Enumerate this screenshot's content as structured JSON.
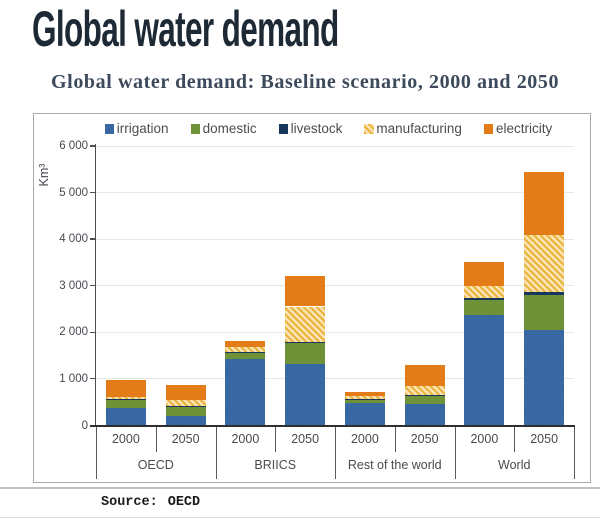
{
  "page": {
    "title": "Global water demand",
    "source_label": "Source:",
    "source_value": "OECD"
  },
  "chart_data": {
    "type": "bar",
    "stacked": true,
    "title": "Global water demand: Baseline scenario, 2000 and 2050",
    "ylabel": "Km³",
    "ylim": [
      0,
      6000
    ],
    "ytick_step": 1000,
    "ytick_labels": [
      "0",
      "1 000",
      "2 000",
      "3 000",
      "4 000",
      "5 000",
      "6 000"
    ],
    "grid": true,
    "legend_position": "top",
    "groups": [
      "OECD",
      "BRIICS",
      "Rest of the world",
      "World"
    ],
    "categories": [
      "2000",
      "2050",
      "2000",
      "2050",
      "2000",
      "2050",
      "2000",
      "2050"
    ],
    "series": [
      {
        "name": "irrigation",
        "color": "#3a6ba7",
        "pattern_color": "#33619c",
        "pattern": "hatch-thin",
        "values": [
          370,
          210,
          1425,
          1310,
          490,
          460,
          2370,
          2040
        ]
      },
      {
        "name": "domestic",
        "color": "#6f9138",
        "pattern_color": "#6f9138",
        "pattern": "solid",
        "values": [
          180,
          195,
          140,
          475,
          60,
          175,
          335,
          770
        ]
      },
      {
        "name": "livestock",
        "color": "#17365d",
        "pattern_color": "#17365d",
        "pattern": "solid",
        "values": [
          10,
          10,
          10,
          15,
          10,
          25,
          35,
          65
        ]
      },
      {
        "name": "manufacturing",
        "color": "#fbe3b4",
        "pattern_color": "#e9b43c",
        "pattern": "stripe",
        "values": [
          60,
          130,
          100,
          755,
          70,
          195,
          265,
          1205
        ]
      },
      {
        "name": "electricity",
        "color": "#ee861b",
        "pattern_color": "#d97114",
        "pattern": "dots",
        "values": [
          355,
          320,
          150,
          655,
          80,
          445,
          515,
          1360
        ]
      }
    ]
  }
}
